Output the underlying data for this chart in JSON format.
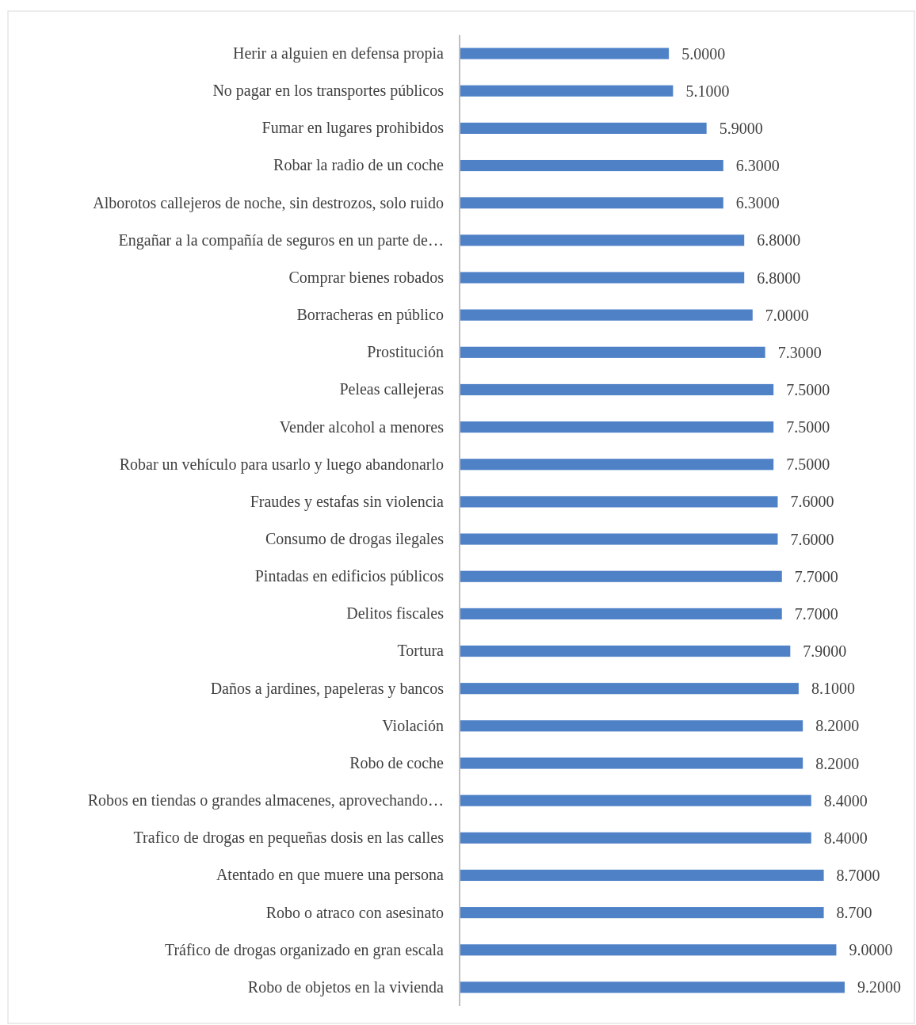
{
  "chart_data": {
    "type": "bar",
    "orientation": "horizontal",
    "categories": [
      "Herir a alguien en defensa propia",
      "No pagar en los transportes públicos",
      "Fumar en lugares prohibidos",
      "Robar la radio de un coche",
      "Alborotos callejeros de noche, sin destrozos, solo ruido",
      "Engañar a la compañía de seguros en un parte de…",
      "Comprar bienes robados",
      "Borracheras en público",
      "Prostitución",
      "Peleas callejeras",
      "Vender alcohol a menores",
      "Robar un vehículo para usarlo y luego abandonarlo",
      "Fraudes y estafas sin violencia",
      "Consumo de drogas ilegales",
      "Pintadas en edificios públicos",
      "Delitos fiscales",
      "Tortura",
      "Daños a jardines, papeleras y bancos",
      "Violación",
      "Robo de coche",
      "Robos en tiendas o grandes almacenes, aprovechando…",
      "Trafico de drogas en pequeñas dosis en las calles",
      "Atentado en que muere una persona",
      "Robo o atraco con asesinato",
      "Tráfico de drogas organizado en gran escala",
      "Robo de objetos en la vivienda"
    ],
    "values": [
      5.0,
      5.1,
      5.9,
      6.3,
      6.3,
      6.8,
      6.8,
      7.0,
      7.3,
      7.5,
      7.5,
      7.5,
      7.6,
      7.6,
      7.7,
      7.7,
      7.9,
      8.1,
      8.2,
      8.2,
      8.4,
      8.4,
      8.7,
      8.7,
      9.0,
      9.2
    ],
    "value_labels": [
      "5.0000",
      "5.1000",
      "5.9000",
      "6.3000",
      "6.3000",
      "6.8000",
      "6.8000",
      "7.0000",
      "7.3000",
      "7.5000",
      "7.5000",
      "7.5000",
      "7.6000",
      "7.6000",
      "7.7000",
      "7.7000",
      "7.9000",
      "8.1000",
      "8.2000",
      "8.2000",
      "8.4000",
      "8.4000",
      "8.7000",
      "8.700",
      "9.0000",
      "9.2000"
    ],
    "color": "#4f81c7",
    "tick_labels": "y"
  }
}
